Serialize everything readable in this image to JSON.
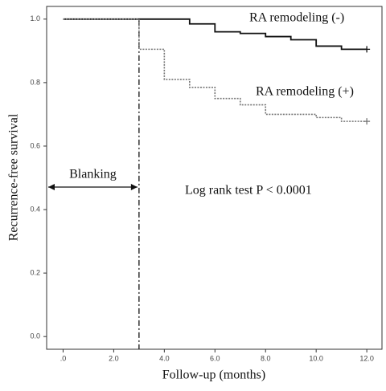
{
  "chart_data": {
    "type": "step",
    "x_label": "Follow-up (months)",
    "y_label": "Recurrence-free survival",
    "xlim": [
      -0.65,
      12.6
    ],
    "ylim": [
      -0.04,
      1.04
    ],
    "xticks": [
      {
        "value": 0,
        "label": ".0"
      },
      {
        "value": 2,
        "label": "2.0"
      },
      {
        "value": 4,
        "label": "4.0"
      },
      {
        "value": 6,
        "label": "6.0"
      },
      {
        "value": 8,
        "label": "8.0"
      },
      {
        "value": 10,
        "label": "10.0"
      },
      {
        "value": 12,
        "label": "12.0"
      }
    ],
    "yticks": [
      {
        "value": 0,
        "label": "0.0"
      },
      0.2,
      0.4,
      0.6,
      0.8,
      {
        "value": 1,
        "label": "1.0"
      }
    ],
    "series": [
      {
        "name": "RA remodeling (-)",
        "color": "#111111",
        "dash": "solid",
        "x": [
          0,
          5,
          6,
          7,
          8,
          9,
          10,
          11,
          12
        ],
        "values": [
          1.0,
          0.985,
          0.96,
          0.955,
          0.945,
          0.935,
          0.915,
          0.905,
          0.905
        ]
      },
      {
        "name": "RA remodeling (+)",
        "color": "#777777",
        "dash": "dotted",
        "x": [
          0,
          3,
          4,
          5,
          6,
          7,
          8,
          10,
          11,
          12
        ],
        "values": [
          1.0,
          0.905,
          0.81,
          0.785,
          0.75,
          0.73,
          0.7,
          0.69,
          0.678,
          0.678
        ]
      }
    ],
    "vline": 3,
    "blanking_label": "Blanking",
    "test_label": "Log rank test  P < 0.0001"
  }
}
